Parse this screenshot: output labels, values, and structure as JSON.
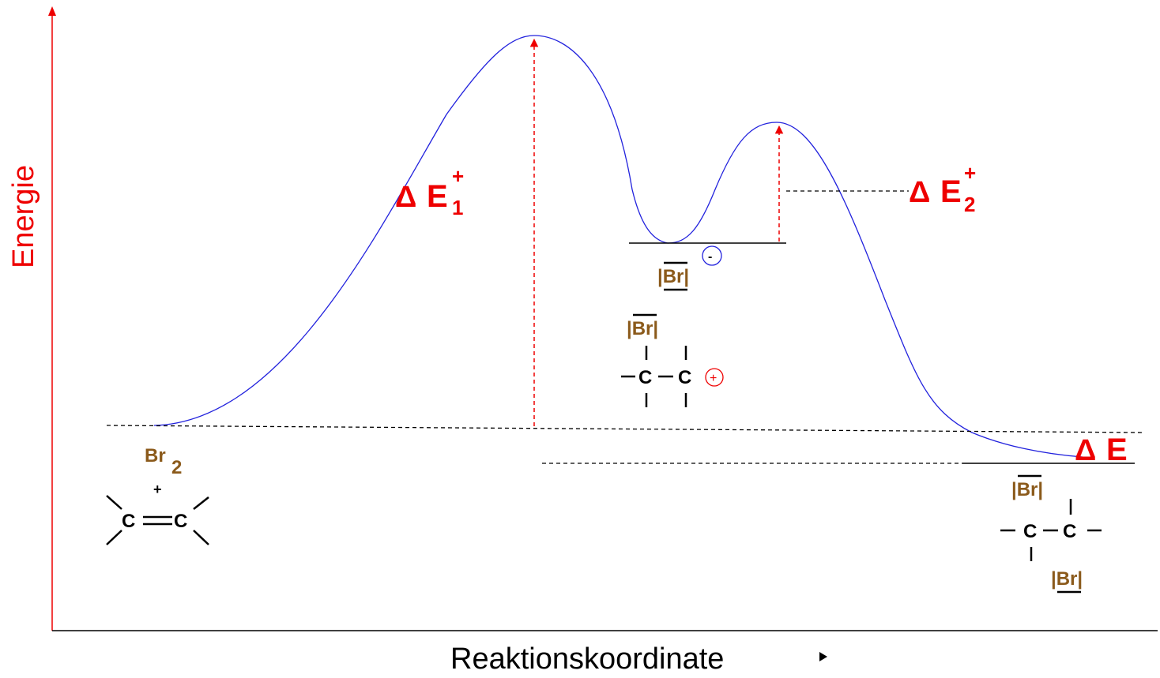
{
  "axes": {
    "y_label": "Energie",
    "x_label": "Reaktionskoordinate",
    "axis_color": "#ee0000"
  },
  "curve_color": "#2222dd",
  "labels": {
    "delta": "Δ",
    "e": "E",
    "plus": "+",
    "sub1": "1",
    "sub2": "2"
  },
  "species": {
    "reactant": {
      "br": "Br",
      "br_sub": "2",
      "plus": "+",
      "c": "C"
    },
    "intermediate": {
      "bromide": "|Br|",
      "charge_minus": "-",
      "br": "|Br|",
      "c": "C",
      "charge_plus": "+"
    },
    "product": {
      "br_top": "|Br|",
      "br_bottom": "|Br|",
      "c": "C"
    }
  },
  "colors": {
    "bromine": "#8b5a1b",
    "label_red": "#ee0000"
  }
}
